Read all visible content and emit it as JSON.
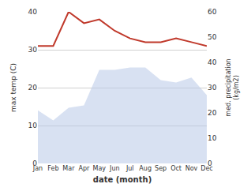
{
  "chart_data": {
    "type": "line",
    "categories": [
      "Jan",
      "Feb",
      "Mar",
      "Apr",
      "May",
      "Jun",
      "Jul",
      "Aug",
      "Sep",
      "Oct",
      "Nov",
      "Dec"
    ],
    "series": [
      {
        "type": "area",
        "axis": "y2",
        "color": "#b8c9e8",
        "values": [
          21,
          17,
          22,
          23,
          37,
          37,
          38,
          38,
          33,
          32,
          34,
          27
        ]
      },
      {
        "type": "line",
        "color": "#c0392b",
        "values": [
          31,
          31,
          40,
          37,
          38,
          35,
          33,
          32,
          32,
          33,
          32,
          31
        ]
      }
    ],
    "xlabel": "date (month)",
    "ylabel": "max temp (C)",
    "y2label": "med. precipitation\n(kg/m2)",
    "ylim": [
      0,
      40
    ],
    "yticks": [
      0,
      10,
      20,
      30,
      40
    ],
    "y2lim": [
      0,
      60
    ],
    "y2ticks": [
      0,
      10,
      20,
      30,
      40,
      50,
      60
    ],
    "grid": true
  }
}
